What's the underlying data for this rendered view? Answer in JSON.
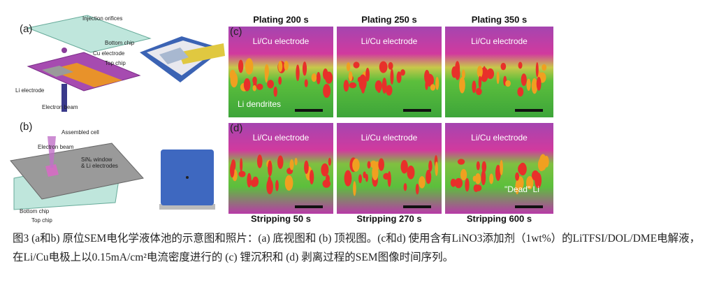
{
  "panel_a": {
    "label": "(a)",
    "callouts": [
      "Injection orifices",
      "Bottom chip",
      "Cu electrode",
      "Top chip",
      "Li electrode",
      "Electron beam"
    ]
  },
  "panel_b": {
    "label": "(b)",
    "callouts": [
      "Assembled cell",
      "Electron beam",
      "SiNₓ window",
      "& Li electrodes",
      "Bottom chip",
      "Top chip"
    ]
  },
  "panel_c": {
    "label": "(c)",
    "titles": [
      "Plating 200 s",
      "Plating 250 s",
      "Plating 350 s"
    ],
    "electrode": "Li/Cu electrode",
    "annotation": "Li dendrites"
  },
  "panel_d": {
    "label": "(d)",
    "titles": [
      "Stripping 50 s",
      "Stripping 270 s",
      "Stripping 600 s"
    ],
    "electrode": "Li/Cu electrode",
    "annotation": "\"Dead\" Li"
  },
  "caption": "图3 (a和b) 原位SEM电化学液体池的示意图和照片：(a) 底视图和 (b) 顶视图。(c和d) 使用含有LiNO3添加剂（1wt%）的LiTFSI/DOL/DME电解液，在Li/Cu电极上以0.15mA/cm²电流密度进行的 (c) 锂沉积和 (d) 剥离过程的SEM图像时间序列。"
}
